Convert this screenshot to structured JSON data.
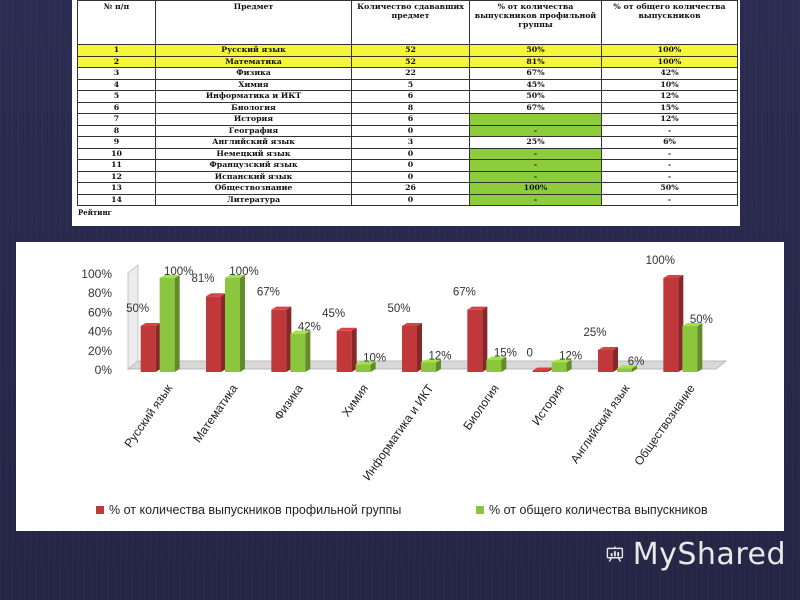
{
  "table": {
    "headers": [
      "№ п/п",
      "Предмет",
      "Количество сдававших предмет",
      "% от количества выпускников профильной группы",
      "% от общего количества выпускников"
    ],
    "rows": [
      {
        "n": "1",
        "subject": "Русский язык",
        "count": "52",
        "pct_group": "50%",
        "pct_total": "100%",
        "highlight": true,
        "green": false
      },
      {
        "n": "2",
        "subject": "Математика",
        "count": "52",
        "pct_group": "81%",
        "pct_total": "100%",
        "highlight": true,
        "green": false
      },
      {
        "n": "3",
        "subject": "Физика",
        "count": "22",
        "pct_group": "67%",
        "pct_total": "42%",
        "highlight": false,
        "green": false
      },
      {
        "n": "4",
        "subject": "Химия",
        "count": "5",
        "pct_group": "45%",
        "pct_total": "10%",
        "highlight": false,
        "green": false
      },
      {
        "n": "5",
        "subject": "Информатика и ИКТ",
        "count": "6",
        "pct_group": "50%",
        "pct_total": "12%",
        "highlight": false,
        "green": false
      },
      {
        "n": "6",
        "subject": "Биология",
        "count": "8",
        "pct_group": "67%",
        "pct_total": "15%",
        "highlight": false,
        "green": false
      },
      {
        "n": "7",
        "subject": "История",
        "count": "6",
        "pct_group": "",
        "pct_total": "12%",
        "highlight": false,
        "green": true
      },
      {
        "n": "8",
        "subject": "География",
        "count": "0",
        "pct_group": "-",
        "pct_total": "-",
        "highlight": false,
        "green": true
      },
      {
        "n": "9",
        "subject": "Английский язык",
        "count": "3",
        "pct_group": "25%",
        "pct_total": "6%",
        "highlight": false,
        "green": false
      },
      {
        "n": "10",
        "subject": "Немецкий язык",
        "count": "0",
        "pct_group": "-",
        "pct_total": "-",
        "highlight": false,
        "green": true
      },
      {
        "n": "11",
        "subject": "Французский язык",
        "count": "0",
        "pct_group": "-",
        "pct_total": "-",
        "highlight": false,
        "green": true
      },
      {
        "n": "12",
        "subject": "Испанский язык",
        "count": "0",
        "pct_group": "-",
        "pct_total": "-",
        "highlight": false,
        "green": true
      },
      {
        "n": "13",
        "subject": "Обществознание",
        "count": "26",
        "pct_group": "100%",
        "pct_total": "50%",
        "highlight": false,
        "green": true
      },
      {
        "n": "14",
        "subject": "Литература",
        "count": "0",
        "pct_group": "-",
        "pct_total": "-",
        "highlight": false,
        "green": true
      }
    ],
    "footer": "Рейтинг"
  },
  "chart_data": {
    "type": "bar",
    "title": "",
    "categories": [
      "Русский язык",
      "Математика",
      "Физика",
      "Химия",
      "Информатика и ИКТ",
      "Биология",
      "История",
      "Английский язык",
      "Обществознание"
    ],
    "series": [
      {
        "name": "% от количества выпускников профильной группы",
        "color": "#c0383a",
        "values": [
          50,
          81,
          67,
          45,
          50,
          67,
          0,
          25,
          100
        ],
        "labels": [
          "50%",
          "81%",
          "67%",
          "45%",
          "50%",
          "67%",
          "0",
          "25%",
          "100%"
        ]
      },
      {
        "name": "% от общего количества выпускников",
        "color": "#8cc63f",
        "values": [
          100,
          100,
          42,
          10,
          12,
          15,
          12,
          6,
          50
        ],
        "labels": [
          "100%",
          "100%",
          "42%",
          "10%",
          "12%",
          "15%",
          "12%",
          "6%",
          "50%"
        ]
      }
    ],
    "yticks": [
      "0%",
      "20%",
      "40%",
      "60%",
      "80%",
      "100%"
    ],
    "ylim": [
      0,
      100
    ],
    "legend": "bottom",
    "grid": false
  },
  "logo": {
    "text": "MyShared",
    "icon": "presentation-screen-icon"
  }
}
